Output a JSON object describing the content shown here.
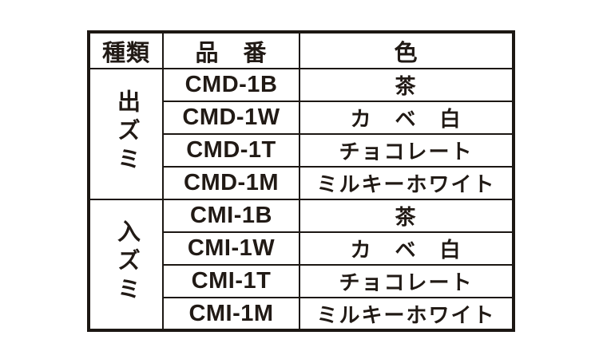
{
  "colors": {
    "background": "#ffffff",
    "border": "#1c1713",
    "text": "#211a15"
  },
  "table": {
    "headers": {
      "type": "種類",
      "part_number": "品　番",
      "color": "色"
    },
    "groups": [
      {
        "type": "出ズミ",
        "rows": [
          {
            "part_number": "CMD-1B",
            "color": "茶"
          },
          {
            "part_number": "CMD-1W",
            "color": "カ　ベ　白"
          },
          {
            "part_number": "CMD-1T",
            "color": "チョコレート"
          },
          {
            "part_number": "CMD-1M",
            "color": "ミルキーホワイト"
          }
        ]
      },
      {
        "type": "入ズミ",
        "rows": [
          {
            "part_number": "CMI-1B",
            "color": "茶"
          },
          {
            "part_number": "CMI-1W",
            "color": "カ　ベ　白"
          },
          {
            "part_number": "CMI-1T",
            "color": "チョコレート"
          },
          {
            "part_number": "CMI-1M",
            "color": "ミルキーホワイト"
          }
        ]
      }
    ]
  }
}
